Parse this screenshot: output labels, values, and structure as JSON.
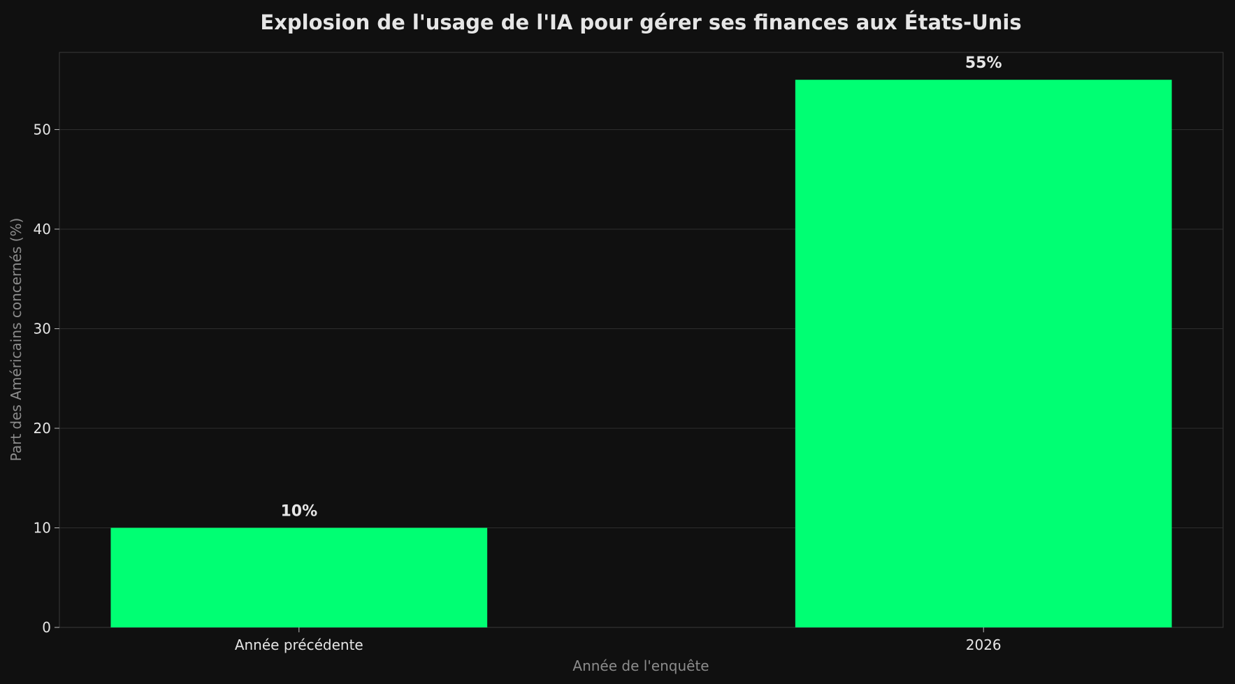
{
  "chart_data": {
    "type": "bar",
    "title": "Explosion de l'usage de l'IA pour gérer ses finances aux États-Unis",
    "xlabel": "Année de l'enquête",
    "ylabel": "Part des Américains concernés (%)",
    "categories": [
      "Année précédente",
      "2026"
    ],
    "values": [
      10,
      55
    ],
    "data_labels": [
      "10%",
      "55%"
    ],
    "ylim": [
      0,
      57.75
    ],
    "yticks": [
      0,
      10,
      20,
      30,
      40,
      50
    ],
    "grid": "horizontal",
    "legend": "none",
    "colors": {
      "bar": "#00ff73",
      "background": "#101010",
      "grid": "#2e2e2e",
      "text": "#e6e6e6",
      "axis_label": "#8c8c8c"
    }
  }
}
